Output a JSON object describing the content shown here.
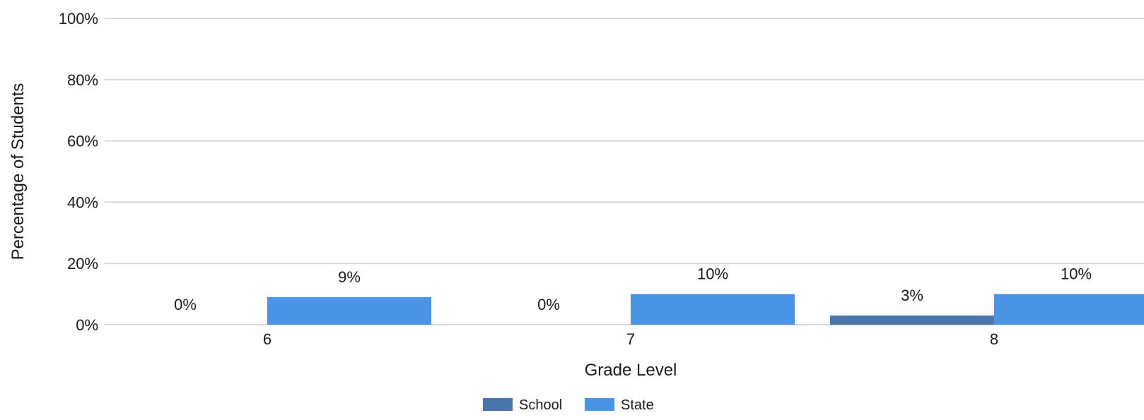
{
  "chart_data": {
    "type": "bar",
    "categories": [
      "6",
      "7",
      "8"
    ],
    "series": [
      {
        "name": "School",
        "values": [
          0,
          0,
          3
        ],
        "color": "#4a76aa"
      },
      {
        "name": "State",
        "values": [
          9,
          10,
          10
        ],
        "color": "#4a94e6"
      }
    ],
    "data_labels": [
      [
        "0%",
        "0%",
        "3%"
      ],
      [
        "9%",
        "10%",
        "10%"
      ]
    ],
    "xlabel": "Grade Level",
    "ylabel": "Percentage of Students",
    "ylim": [
      0,
      100
    ],
    "yticks": [
      "0%",
      "20%",
      "40%",
      "60%",
      "80%",
      "100%"
    ],
    "grid": true,
    "legend_position": "bottom",
    "gridline_color": "#d9d9d9"
  }
}
